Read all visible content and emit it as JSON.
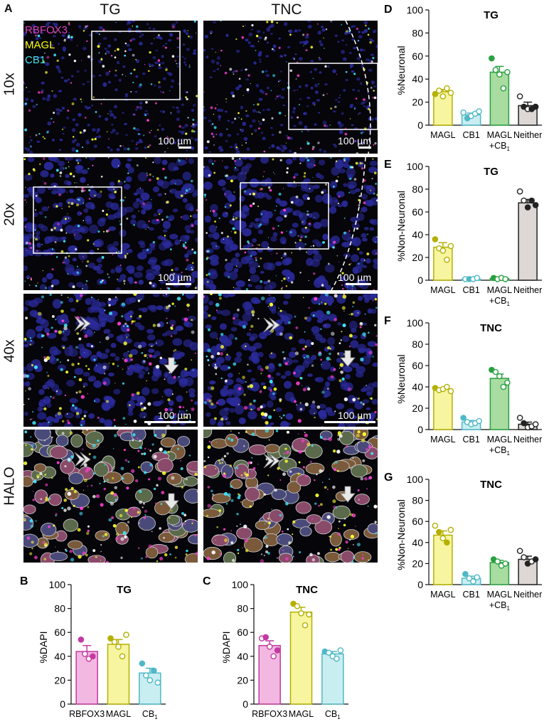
{
  "panel_A": {
    "letter": "A",
    "columns": [
      "TG",
      "TNC"
    ],
    "rows": [
      "10x",
      "20x",
      "40x",
      "HALO"
    ],
    "legend": [
      {
        "label": "RBFOX3",
        "color": "#e040c0"
      },
      {
        "label": "MAGL",
        "color": "#ffff00"
      },
      {
        "label": "CB1",
        "color": "#40e0e0"
      }
    ],
    "scale_label": "100 µm"
  },
  "chart_data": [
    {
      "id": "B",
      "letter": "B",
      "type": "bar",
      "title": "TG",
      "ylabel": "%DAPI",
      "ylim": [
        0,
        100
      ],
      "yticks": [
        0,
        20,
        40,
        60,
        80,
        100
      ],
      "categories": [
        "RBFOX3",
        "MAGL",
        "CB",
        "1"
      ],
      "bars": [
        {
          "label": "RBFOX3",
          "sub": "",
          "value": 44,
          "sem": 5,
          "fill": "#f2b8e2",
          "edge": "#c43aa0",
          "points": [
            {
              "v": 54,
              "filled": true
            },
            {
              "v": 42,
              "filled": false
            },
            {
              "v": 38,
              "filled": false
            },
            {
              "v": 40,
              "filled": true
            }
          ]
        },
        {
          "label": "MAGL",
          "sub": "",
          "value": 50,
          "sem": 4,
          "fill": "#f7f5a0",
          "edge": "#b5b000",
          "points": [
            {
              "v": 55,
              "filled": true
            },
            {
              "v": 52,
              "filled": false
            },
            {
              "v": 48,
              "filled": false
            },
            {
              "v": 40,
              "filled": false
            },
            {
              "v": 58,
              "filled": false
            }
          ]
        },
        {
          "label": "CB",
          "sub": "1",
          "value": 26,
          "sem": 4,
          "fill": "#c9eef2",
          "edge": "#4fb8c6",
          "points": [
            {
              "v": 34,
              "filled": true
            },
            {
              "v": 24,
              "filled": false
            },
            {
              "v": 20,
              "filled": false
            },
            {
              "v": 28,
              "filled": true
            },
            {
              "v": 18,
              "filled": false
            }
          ]
        }
      ]
    },
    {
      "id": "C",
      "letter": "C",
      "type": "bar",
      "title": "TNC",
      "ylabel": "%DAPI",
      "ylim": [
        0,
        100
      ],
      "yticks": [
        0,
        20,
        40,
        60,
        80,
        100
      ],
      "categories": [
        "RBFOX3",
        "MAGL",
        "CB",
        "1"
      ],
      "bars": [
        {
          "label": "RBFOX3",
          "sub": "",
          "value": 49,
          "sem": 4,
          "fill": "#f2b8e2",
          "edge": "#c43aa0",
          "points": [
            {
              "v": 55,
              "filled": false
            },
            {
              "v": 56,
              "filled": true
            },
            {
              "v": 48,
              "filled": false
            },
            {
              "v": 40,
              "filled": false
            },
            {
              "v": 45,
              "filled": true
            }
          ]
        },
        {
          "label": "MAGL",
          "sub": "",
          "value": 77,
          "sem": 4,
          "fill": "#f7f5a0",
          "edge": "#b5b000",
          "points": [
            {
              "v": 84,
              "filled": true
            },
            {
              "v": 82,
              "filled": false
            },
            {
              "v": 76,
              "filled": false
            },
            {
              "v": 66,
              "filled": false
            },
            {
              "v": 75,
              "filled": false
            }
          ]
        },
        {
          "label": "CB",
          "sub": "1",
          "value": 42,
          "sem": 2,
          "fill": "#c9eef2",
          "edge": "#4fb8c6",
          "points": [
            {
              "v": 44,
              "filled": true
            },
            {
              "v": 43,
              "filled": false
            },
            {
              "v": 40,
              "filled": false
            },
            {
              "v": 38,
              "filled": false
            },
            {
              "v": 45,
              "filled": false
            }
          ]
        }
      ]
    },
    {
      "id": "D",
      "letter": "D",
      "type": "bar",
      "title": "TG",
      "ylabel": "%Neuronal",
      "ylim": [
        0,
        100
      ],
      "yticks": [
        0,
        20,
        40,
        60,
        80,
        100
      ],
      "bars": [
        {
          "label": "MAGL",
          "sub": "",
          "value": 29,
          "sem": 2,
          "fill": "#f7f5a0",
          "edge": "#b5b000",
          "points": [
            {
              "v": 27,
              "filled": true
            },
            {
              "v": 30,
              "filled": false
            },
            {
              "v": 25,
              "filled": false
            },
            {
              "v": 32,
              "filled": false
            },
            {
              "v": 28,
              "filled": false
            }
          ]
        },
        {
          "label": "CB1",
          "sub": "",
          "value": 9,
          "sem": 1.5,
          "fill": "#c9eef2",
          "edge": "#4fb8c6",
          "points": [
            {
              "v": 11,
              "filled": false
            },
            {
              "v": 6,
              "filled": true
            },
            {
              "v": 8,
              "filled": false
            },
            {
              "v": 10,
              "filled": false
            },
            {
              "v": 12,
              "filled": false
            }
          ]
        },
        {
          "label": "MAGL",
          "sub": "+CB1",
          "value": 46,
          "sem": 5,
          "fill": "#a8dca0",
          "edge": "#2aa040",
          "points": [
            {
              "v": 58,
              "filled": true
            },
            {
              "v": 48,
              "filled": false
            },
            {
              "v": 44,
              "filled": false
            },
            {
              "v": 32,
              "filled": false
            },
            {
              "v": 46,
              "filled": false
            }
          ]
        },
        {
          "label": "Neither",
          "sub": "",
          "value": 17,
          "sem": 3,
          "fill": "#ddd8d5",
          "edge": "#222222",
          "points": [
            {
              "v": 25,
              "filled": false
            },
            {
              "v": 16,
              "filled": true
            },
            {
              "v": 14,
              "filled": false
            },
            {
              "v": 14,
              "filled": true
            },
            {
              "v": 16,
              "filled": true
            }
          ]
        }
      ]
    },
    {
      "id": "E",
      "letter": "E",
      "type": "bar",
      "title": "TG",
      "ylabel": "%Non-Neuronal",
      "ylim": [
        0,
        100
      ],
      "yticks": [
        0,
        20,
        40,
        60,
        80,
        100
      ],
      "bars": [
        {
          "label": "MAGL",
          "sub": "",
          "value": 29,
          "sem": 4,
          "fill": "#f7f5a0",
          "edge": "#b5b000",
          "points": [
            {
              "v": 36,
              "filled": true
            },
            {
              "v": 28,
              "filled": false
            },
            {
              "v": 26,
              "filled": false
            },
            {
              "v": 18,
              "filled": false
            },
            {
              "v": 30,
              "filled": false
            }
          ]
        },
        {
          "label": "CB1",
          "sub": "",
          "value": 1,
          "sem": 0.5,
          "fill": "#c9eef2",
          "edge": "#4fb8c6",
          "points": [
            {
              "v": 1,
              "filled": false
            },
            {
              "v": 1,
              "filled": true
            },
            {
              "v": 1,
              "filled": false
            },
            {
              "v": 2,
              "filled": false
            }
          ]
        },
        {
          "label": "MAGL",
          "sub": "+CB1",
          "value": 1.5,
          "sem": 0.5,
          "fill": "#a8dca0",
          "edge": "#2aa040",
          "points": [
            {
              "v": 2,
              "filled": true
            },
            {
              "v": 1,
              "filled": false
            },
            {
              "v": 2,
              "filled": false
            },
            {
              "v": 1,
              "filled": false
            }
          ]
        },
        {
          "label": "Neither",
          "sub": "",
          "value": 68,
          "sem": 3,
          "fill": "#ddd8d5",
          "edge": "#222222",
          "points": [
            {
              "v": 78,
              "filled": false
            },
            {
              "v": 70,
              "filled": false
            },
            {
              "v": 64,
              "filled": true
            },
            {
              "v": 70,
              "filled": true
            },
            {
              "v": 66,
              "filled": true
            }
          ]
        }
      ]
    },
    {
      "id": "F",
      "letter": "F",
      "type": "bar",
      "title": "TNC",
      "ylabel": "%Neuronal",
      "ylim": [
        0,
        100
      ],
      "yticks": [
        0,
        20,
        40,
        60,
        80,
        100
      ],
      "bars": [
        {
          "label": "MAGL",
          "sub": "",
          "value": 38,
          "sem": 1,
          "fill": "#f7f5a0",
          "edge": "#b5b000",
          "points": [
            {
              "v": 39,
              "filled": true
            },
            {
              "v": 37,
              "filled": false
            },
            {
              "v": 38,
              "filled": false
            },
            {
              "v": 40,
              "filled": false
            },
            {
              "v": 36,
              "filled": false
            }
          ]
        },
        {
          "label": "CB1",
          "sub": "",
          "value": 7,
          "sem": 1.5,
          "fill": "#c9eef2",
          "edge": "#4fb8c6",
          "points": [
            {
              "v": 11,
              "filled": true
            },
            {
              "v": 7,
              "filled": false
            },
            {
              "v": 5,
              "filled": false
            },
            {
              "v": 6,
              "filled": false
            },
            {
              "v": 8,
              "filled": false
            }
          ]
        },
        {
          "label": "MAGL",
          "sub": "+CB1",
          "value": 48,
          "sem": 4,
          "fill": "#a8dca0",
          "edge": "#2aa040",
          "points": [
            {
              "v": 56,
              "filled": true
            },
            {
              "v": 54,
              "filled": false
            },
            {
              "v": 50,
              "filled": false
            },
            {
              "v": 40,
              "filled": false
            },
            {
              "v": 44,
              "filled": false
            }
          ]
        },
        {
          "label": "Neither",
          "sub": "",
          "value": 5,
          "sem": 2,
          "fill": "#ddd8d5",
          "edge": "#222222",
          "points": [
            {
              "v": 11,
              "filled": false
            },
            {
              "v": 6,
              "filled": true
            },
            {
              "v": 2,
              "filled": false
            },
            {
              "v": 3,
              "filled": false
            },
            {
              "v": 5,
              "filled": false
            }
          ]
        }
      ]
    },
    {
      "id": "G",
      "letter": "G",
      "type": "bar",
      "title": "TNC",
      "ylabel": "%Non-Neuronal",
      "ylim": [
        0,
        100
      ],
      "yticks": [
        0,
        20,
        40,
        60,
        80,
        100
      ],
      "bars": [
        {
          "label": "MAGL",
          "sub": "",
          "value": 47,
          "sem": 4,
          "fill": "#f7f5a0",
          "edge": "#b5b000",
          "points": [
            {
              "v": 56,
              "filled": false
            },
            {
              "v": 50,
              "filled": true
            },
            {
              "v": 44,
              "filled": false
            },
            {
              "v": 40,
              "filled": true
            },
            {
              "v": 52,
              "filled": false
            }
          ]
        },
        {
          "label": "CB1",
          "sub": "",
          "value": 6,
          "sem": 2,
          "fill": "#c9eef2",
          "edge": "#4fb8c6",
          "points": [
            {
              "v": 10,
              "filled": true
            },
            {
              "v": 6,
              "filled": false
            },
            {
              "v": 3,
              "filled": false
            },
            {
              "v": 7,
              "filled": false
            }
          ]
        },
        {
          "label": "MAGL",
          "sub": "+CB1",
          "value": 21,
          "sem": 2,
          "fill": "#a8dca0",
          "edge": "#2aa040",
          "points": [
            {
              "v": 24,
              "filled": true
            },
            {
              "v": 22,
              "filled": false
            },
            {
              "v": 18,
              "filled": false
            },
            {
              "v": 20,
              "filled": false
            }
          ]
        },
        {
          "label": "Neither",
          "sub": "",
          "value": 24,
          "sem": 3,
          "fill": "#ddd8d5",
          "edge": "#222222",
          "points": [
            {
              "v": 32,
              "filled": false
            },
            {
              "v": 26,
              "filled": false
            },
            {
              "v": 20,
              "filled": true
            },
            {
              "v": 22,
              "filled": false
            },
            {
              "v": 24,
              "filled": true
            }
          ]
        }
      ]
    }
  ]
}
